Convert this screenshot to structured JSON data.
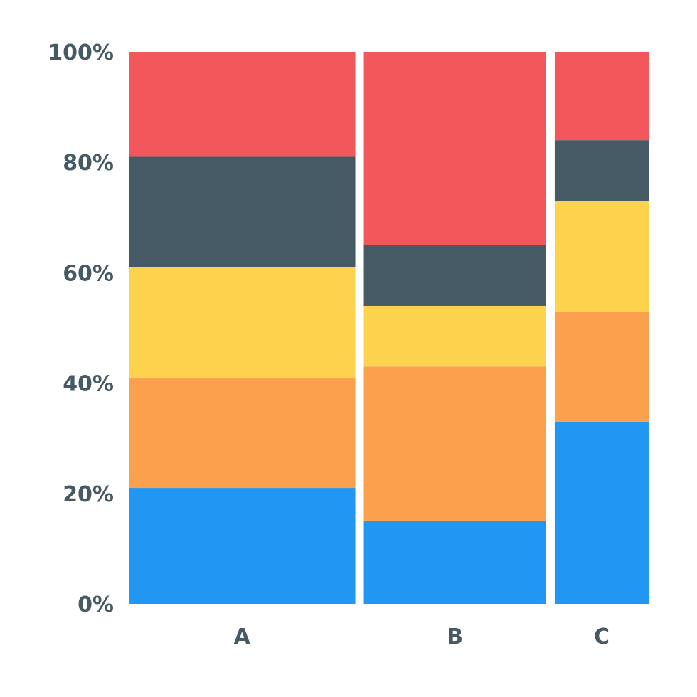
{
  "chart_data": {
    "type": "bar",
    "subtype": "marimekko",
    "categories": [
      "A",
      "B",
      "C"
    ],
    "column_widths": [
      41,
      33,
      17
    ],
    "yticks": [
      "0%",
      "20%",
      "40%",
      "60%",
      "80%",
      "100%"
    ],
    "ylim": [
      0,
      100
    ],
    "series": [
      {
        "color": "#2196f3",
        "values": [
          21,
          15,
          33
        ]
      },
      {
        "color": "#fba04c",
        "values": [
          20,
          28,
          20
        ]
      },
      {
        "color": "#fdd34d",
        "values": [
          20,
          11,
          20
        ]
      },
      {
        "color": "#465a66",
        "values": [
          20,
          11,
          11
        ]
      },
      {
        "color": "#f2575b",
        "values": [
          19,
          35,
          16
        ]
      }
    ]
  },
  "colors": {
    "text": "#455a64",
    "background": "#ffffff"
  }
}
